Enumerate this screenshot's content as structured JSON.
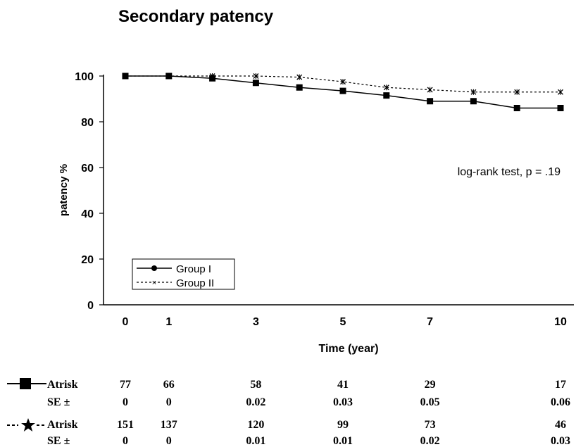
{
  "chart_data": {
    "type": "line",
    "title": "Secondary patency",
    "xlabel": "Time (year)",
    "ylabel": "patency %",
    "xlim": [
      0,
      10
    ],
    "ylim": [
      0,
      100
    ],
    "x_ticks": [
      "0",
      "1",
      "3",
      "5",
      "7",
      "10"
    ],
    "y_ticks": [
      "0",
      "20",
      "40",
      "60",
      "80",
      "100"
    ],
    "grid": false,
    "legend_position": "bottom-left",
    "annotation": "log-rank test, p = .19",
    "series": [
      {
        "name": "Group I",
        "marker": "square",
        "line": "solid",
        "x": [
          0,
          1,
          2,
          3,
          4,
          5,
          6,
          7,
          8,
          9,
          10
        ],
        "values": [
          100,
          100,
          99,
          97,
          95,
          93.5,
          91.5,
          89,
          89,
          86,
          86
        ]
      },
      {
        "name": "Group II",
        "marker": "star",
        "line": "dashed",
        "x": [
          0,
          1,
          2,
          3,
          4,
          5,
          6,
          7,
          8,
          9,
          10
        ],
        "values": [
          100,
          100,
          100,
          100,
          99.5,
          97.5,
          95,
          94,
          93,
          93,
          93
        ]
      }
    ]
  },
  "risk_table": {
    "row_labels": {
      "at_risk": "Atrisk",
      "se": "SE ±"
    },
    "x_positions": [
      0,
      1,
      3,
      5,
      7,
      10
    ],
    "groups": [
      {
        "marker": "square",
        "at_risk": [
          "77",
          "66",
          "58",
          "41",
          "29",
          "17"
        ],
        "se": [
          "0",
          "0",
          "0.02",
          "0.03",
          "0.05",
          "0.06"
        ]
      },
      {
        "marker": "star",
        "at_risk": [
          "151",
          "137",
          "120",
          "99",
          "73",
          "46"
        ],
        "se": [
          "0",
          "0",
          "0.01",
          "0.01",
          "0.02",
          "0.03"
        ]
      }
    ]
  }
}
